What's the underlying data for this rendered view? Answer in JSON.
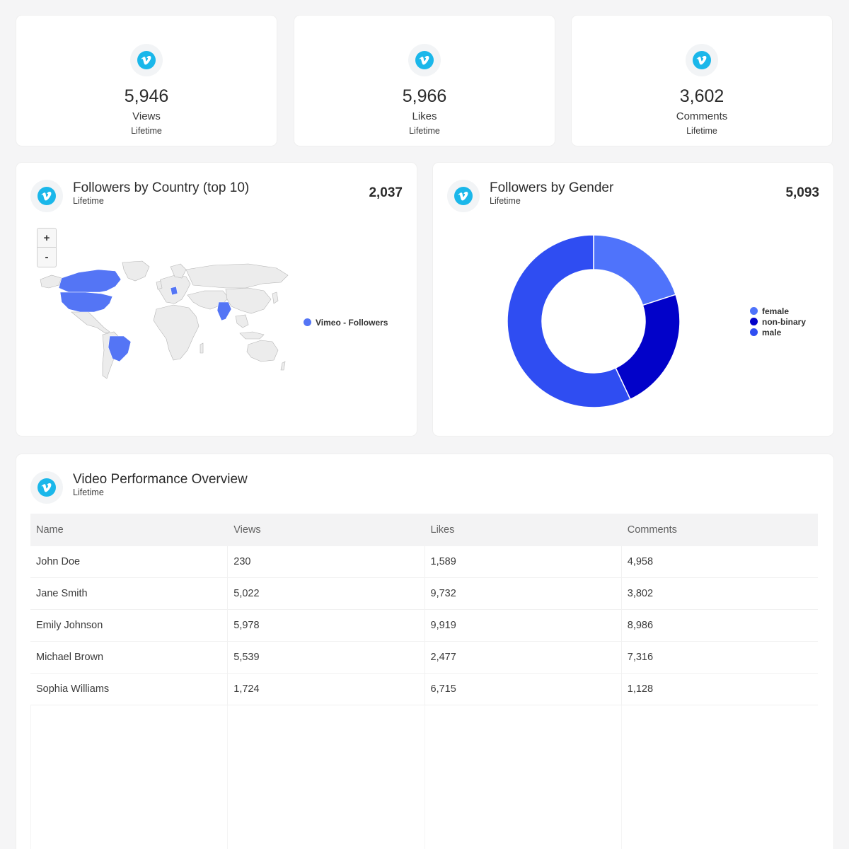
{
  "kpis": [
    {
      "value": "5,946",
      "label": "Views",
      "period": "Lifetime"
    },
    {
      "value": "5,966",
      "label": "Likes",
      "period": "Lifetime"
    },
    {
      "value": "3,602",
      "label": "Comments",
      "period": "Lifetime"
    }
  ],
  "brand_icon": "vimeo-icon",
  "colors": {
    "vimeo_blue": "#1ab7ea",
    "highlight": "#5475f5",
    "female": "#4f73fb",
    "non_binary": "#0202c9",
    "male": "#2f4df2"
  },
  "country_card": {
    "title": "Followers by Country (top 10)",
    "period": "Lifetime",
    "total": "2,037",
    "zoom_in": "+",
    "zoom_out": "-",
    "legend": "Vimeo - Followers",
    "highlighted_countries": [
      "Canada",
      "United States",
      "Brazil",
      "India",
      "Germany"
    ]
  },
  "gender_card": {
    "title": "Followers by Gender",
    "period": "Lifetime",
    "total": "5,093"
  },
  "chart_data": {
    "type": "pie",
    "donut": true,
    "categories": [
      "female",
      "non-binary",
      "male"
    ],
    "values": [
      20,
      23,
      57
    ],
    "legend": "right",
    "colors": [
      "#4f73fb",
      "#0202c9",
      "#2f4df2"
    ]
  },
  "video_table": {
    "title": "Video Performance Overview",
    "period": "Lifetime",
    "headers": [
      "Name",
      "Views",
      "Likes",
      "Comments"
    ],
    "rows": [
      [
        "John Doe",
        "230",
        "1,589",
        "4,958"
      ],
      [
        "Jane Smith",
        "5,022",
        "9,732",
        "3,802"
      ],
      [
        "Emily Johnson",
        "5,978",
        "9,919",
        "8,986"
      ],
      [
        "Michael Brown",
        "5,539",
        "2,477",
        "7,316"
      ],
      [
        "Sophia Williams",
        "1,724",
        "6,715",
        "1,128"
      ]
    ]
  }
}
